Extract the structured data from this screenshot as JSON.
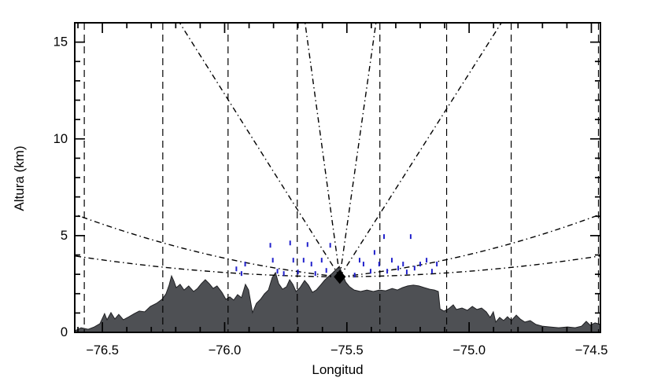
{
  "chart_data": {
    "type": "area",
    "title": "",
    "xlabel": "Longitud",
    "ylabel": "Altura (km)",
    "xlim": [
      -76.613,
      -74.463
    ],
    "ylim": [
      0,
      16
    ],
    "x_major_ticks": [
      -76.5,
      -76.0,
      -75.5,
      -75.0,
      -74.5
    ],
    "x_major_labels": [
      "−76.5",
      "−76.0",
      "−75.5",
      "−75.0",
      "−74.5"
    ],
    "x_minor_step": 0.1,
    "y_major_ticks": [
      0,
      5,
      10,
      15
    ],
    "y_major_labels": [
      "0",
      "5",
      "10",
      "15"
    ],
    "y_minor_step": 1,
    "grid": false,
    "colors": {
      "axis": "#000000",
      "terrain_fill": "#4e5054",
      "terrain_edge": "#202124",
      "beam": "#000000",
      "range_line": "#000000",
      "echo": "#2222cc",
      "radar_marker": "#000000"
    },
    "radar": {
      "lon": -75.529,
      "alt_km": 2.87,
      "marker": "filled-diamond"
    },
    "beams": [
      {
        "end": [
          -76.613,
          3.95
        ],
        "sag_km": 0.25
      },
      {
        "end": [
          -76.613,
          6.1
        ],
        "sag_km": 0.45
      },
      {
        "end": [
          -76.184,
          16.0
        ],
        "sag_km": 0
      },
      {
        "end": [
          -75.671,
          16.0
        ],
        "sag_km": 0
      },
      {
        "end": [
          -75.381,
          16.0
        ],
        "sag_km": 0
      },
      {
        "end": [
          -74.868,
          16.0
        ],
        "sag_km": 0
      },
      {
        "end": [
          -74.463,
          6.1
        ],
        "sag_km": 0.45
      },
      {
        "end": [
          -74.463,
          3.95
        ],
        "sag_km": 0.25
      }
    ],
    "range_lines_lon": [
      -76.574,
      -76.253,
      -75.986,
      -75.703,
      -75.365,
      -75.092,
      -74.828,
      -74.471
    ],
    "echo_marks": [
      [
        -75.952,
        3.28
      ],
      [
        -75.931,
        3.04
      ],
      [
        -75.916,
        3.53
      ],
      [
        -75.813,
        4.5
      ],
      [
        -75.803,
        3.73
      ],
      [
        -75.784,
        3.16
      ],
      [
        -75.758,
        3.04
      ],
      [
        -75.732,
        4.62
      ],
      [
        -75.719,
        3.73
      ],
      [
        -75.7,
        3.12
      ],
      [
        -75.677,
        3.73
      ],
      [
        -75.661,
        4.54
      ],
      [
        -75.645,
        3.53
      ],
      [
        -75.629,
        3.04
      ],
      [
        -75.603,
        3.73
      ],
      [
        -75.584,
        3.2
      ],
      [
        -75.568,
        4.5
      ],
      [
        -75.468,
        2.96
      ],
      [
        -75.448,
        3.73
      ],
      [
        -75.432,
        3.53
      ],
      [
        -75.403,
        3.16
      ],
      [
        -75.387,
        4.13
      ],
      [
        -75.368,
        3.53
      ],
      [
        -75.348,
        4.95
      ],
      [
        -75.335,
        3.16
      ],
      [
        -75.316,
        3.73
      ],
      [
        -75.29,
        3.32
      ],
      [
        -75.27,
        3.53
      ],
      [
        -75.255,
        3.12
      ],
      [
        -75.239,
        4.95
      ],
      [
        -75.223,
        3.32
      ],
      [
        -75.2,
        3.53
      ],
      [
        -75.174,
        3.73
      ],
      [
        -75.152,
        3.16
      ],
      [
        -75.132,
        3.53
      ]
    ],
    "terrain_profile": [
      [
        -76.613,
        0.08
      ],
      [
        -76.587,
        0.24
      ],
      [
        -76.558,
        0.16
      ],
      [
        -76.533,
        0.28
      ],
      [
        -76.51,
        0.45
      ],
      [
        -76.491,
        0.97
      ],
      [
        -76.481,
        0.65
      ],
      [
        -76.465,
        1.02
      ],
      [
        -76.449,
        0.69
      ],
      [
        -76.433,
        0.93
      ],
      [
        -76.414,
        0.65
      ],
      [
        -76.391,
        0.81
      ],
      [
        -76.369,
        0.97
      ],
      [
        -76.349,
        1.1
      ],
      [
        -76.327,
        1.06
      ],
      [
        -76.304,
        1.34
      ],
      [
        -76.279,
        1.5
      ],
      [
        -76.256,
        1.71
      ],
      [
        -76.24,
        1.99
      ],
      [
        -76.227,
        2.44
      ],
      [
        -76.217,
        2.92
      ],
      [
        -76.207,
        2.64
      ],
      [
        -76.198,
        2.31
      ],
      [
        -76.182,
        2.48
      ],
      [
        -76.166,
        2.19
      ],
      [
        -76.147,
        2.4
      ],
      [
        -76.127,
        2.11
      ],
      [
        -76.111,
        2.27
      ],
      [
        -76.095,
        2.52
      ],
      [
        -76.079,
        2.72
      ],
      [
        -76.063,
        2.52
      ],
      [
        -76.047,
        2.27
      ],
      [
        -76.031,
        2.4
      ],
      [
        -76.011,
        2.07
      ],
      [
        -75.995,
        1.71
      ],
      [
        -75.979,
        1.83
      ],
      [
        -75.963,
        1.67
      ],
      [
        -75.947,
        1.95
      ],
      [
        -75.931,
        1.79
      ],
      [
        -75.915,
        2.48
      ],
      [
        -75.902,
        2.19
      ],
      [
        -75.886,
        1.02
      ],
      [
        -75.87,
        1.5
      ],
      [
        -75.853,
        1.71
      ],
      [
        -75.837,
        1.99
      ],
      [
        -75.821,
        2.19
      ],
      [
        -75.805,
        2.84
      ],
      [
        -75.792,
        3.09
      ],
      [
        -75.779,
        2.52
      ],
      [
        -75.763,
        2.23
      ],
      [
        -75.747,
        2.36
      ],
      [
        -75.734,
        2.72
      ],
      [
        -75.721,
        2.48
      ],
      [
        -75.708,
        2.11
      ],
      [
        -75.692,
        2.31
      ],
      [
        -75.673,
        2.68
      ],
      [
        -75.657,
        2.44
      ],
      [
        -75.641,
        2.07
      ],
      [
        -75.625,
        2.19
      ],
      [
        -75.608,
        2.44
      ],
      [
        -75.592,
        2.68
      ],
      [
        -75.576,
        2.88
      ],
      [
        -75.56,
        3.05
      ],
      [
        -75.544,
        3.25
      ],
      [
        -75.531,
        3.41
      ],
      [
        -75.518,
        3.01
      ],
      [
        -75.505,
        2.6
      ],
      [
        -75.489,
        2.36
      ],
      [
        -75.47,
        2.19
      ],
      [
        -75.444,
        2.11
      ],
      [
        -75.418,
        2.19
      ],
      [
        -75.392,
        2.11
      ],
      [
        -75.367,
        2.19
      ],
      [
        -75.341,
        2.15
      ],
      [
        -75.315,
        2.27
      ],
      [
        -75.293,
        2.19
      ],
      [
        -75.273,
        2.31
      ],
      [
        -75.251,
        2.4
      ],
      [
        -75.228,
        2.44
      ],
      [
        -75.206,
        2.4
      ],
      [
        -75.183,
        2.31
      ],
      [
        -75.161,
        2.23
      ],
      [
        -75.142,
        2.19
      ],
      [
        -75.126,
        2.11
      ],
      [
        -75.119,
        1.22
      ],
      [
        -75.103,
        1.1
      ],
      [
        -75.084,
        1.22
      ],
      [
        -75.065,
        1.42
      ],
      [
        -75.052,
        1.18
      ],
      [
        -75.029,
        1.26
      ],
      [
        -75.007,
        1.14
      ],
      [
        -74.987,
        1.34
      ],
      [
        -74.968,
        1.18
      ],
      [
        -74.949,
        1.26
      ],
      [
        -74.93,
        1.06
      ],
      [
        -74.914,
        0.77
      ],
      [
        -74.901,
        1.06
      ],
      [
        -74.891,
        0.53
      ],
      [
        -74.875,
        0.77
      ],
      [
        -74.859,
        0.61
      ],
      [
        -74.843,
        0.81
      ],
      [
        -74.827,
        0.61
      ],
      [
        -74.807,
        0.89
      ],
      [
        -74.791,
        0.69
      ],
      [
        -74.772,
        0.53
      ],
      [
        -74.75,
        0.61
      ],
      [
        -74.727,
        0.41
      ],
      [
        -74.701,
        0.32
      ],
      [
        -74.669,
        0.28
      ],
      [
        -74.634,
        0.24
      ],
      [
        -74.598,
        0.28
      ],
      [
        -74.566,
        0.24
      ],
      [
        -74.54,
        0.32
      ],
      [
        -74.521,
        0.57
      ],
      [
        -74.505,
        0.37
      ],
      [
        -74.485,
        0.49
      ],
      [
        -74.463,
        0.41
      ]
    ]
  }
}
